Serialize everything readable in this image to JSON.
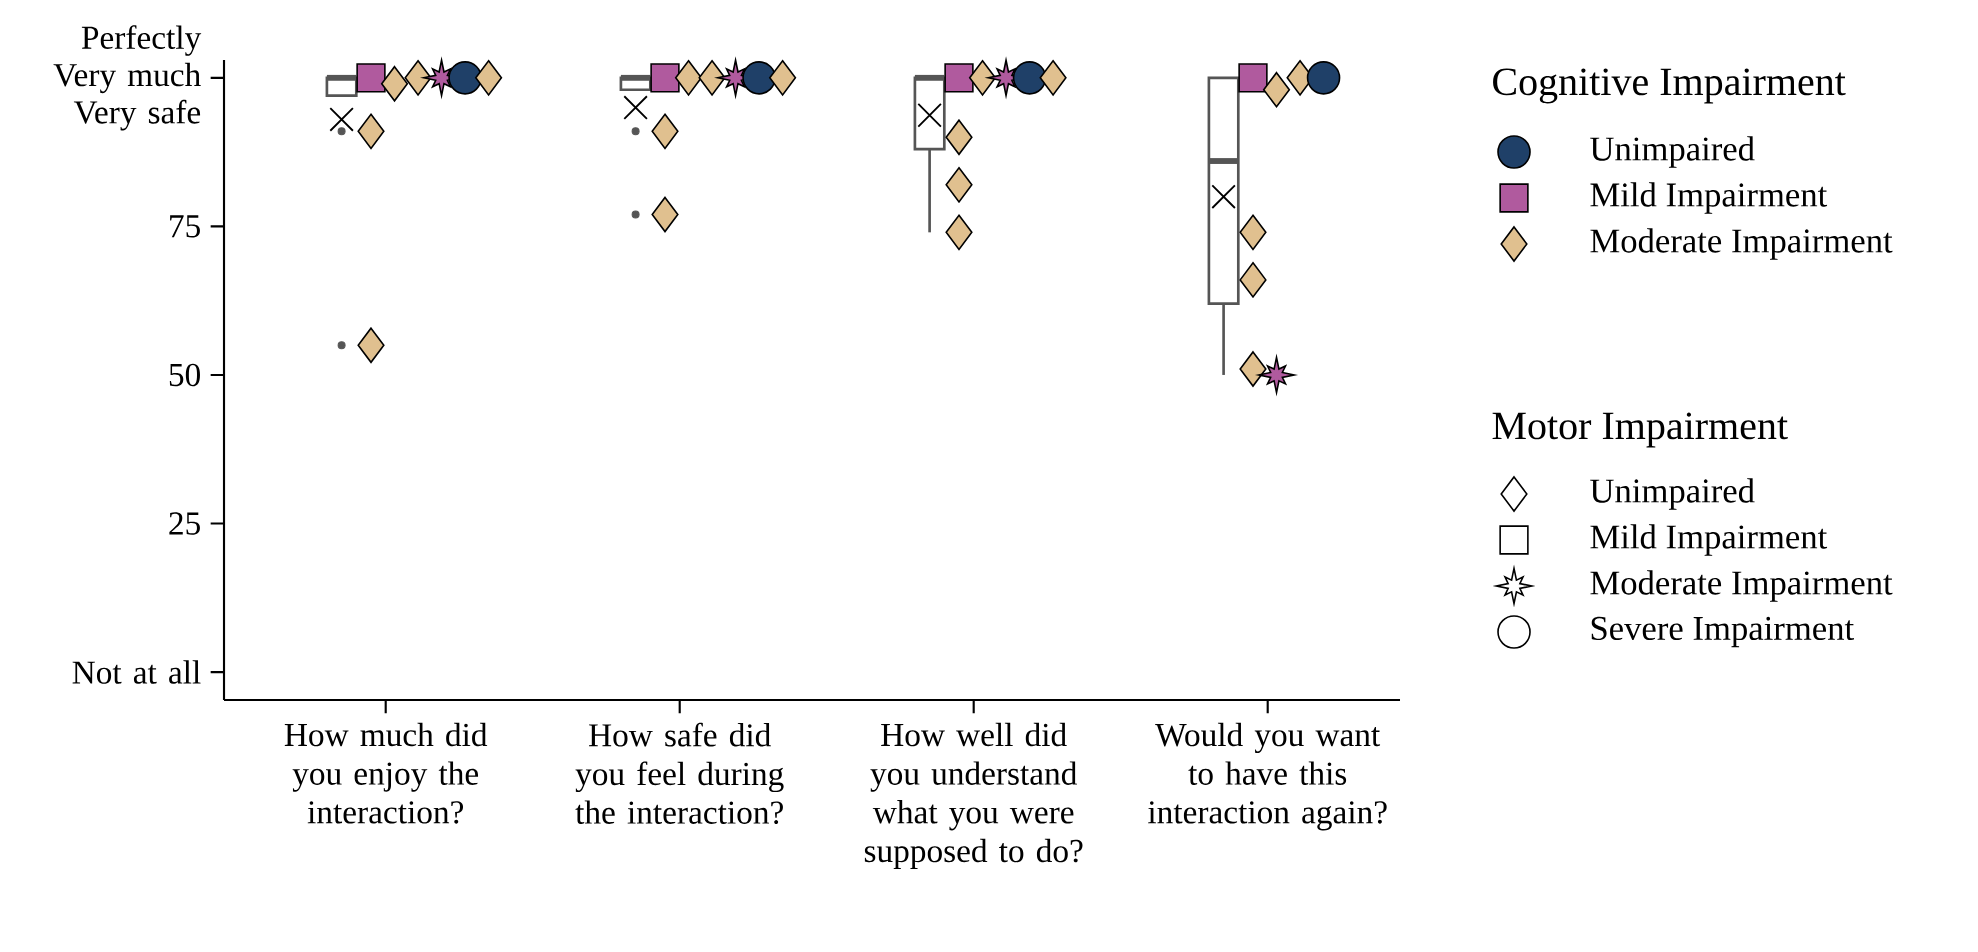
{
  "chart_data": {
    "type": "scatter",
    "categories": [
      "How much did you enjoy the interaction?",
      "How safe did you feel during the interaction?",
      "How well did you understand what you were supposed to do?",
      "Would you want to have this interaction again?"
    ],
    "ylim": [
      -4.7,
      103
    ],
    "yticks": [
      {
        "value": 0,
        "label": "Not at all"
      },
      25,
      50,
      75,
      {
        "value": 100,
        "label": "Perfectly Very much Very safe"
      }
    ],
    "annotations": [
      "Cognitive Impairment",
      "Unimpaired",
      "Mild Impairment",
      "Moderate Impairment",
      "Motor Impairment",
      "Unimpaired",
      "Mild Impairment",
      "Moderate Impairment",
      "Severe Impairment"
    ],
    "series": [
      {
        "type": "box",
        "color": "#555555",
        "boxes": [
          {
            "low": 97,
            "q1": 97,
            "median": 100,
            "q3": 100,
            "high": 100,
            "mean": 93,
            "outliers": [
              91,
              55
            ]
          },
          {
            "low": 98,
            "q1": 98,
            "median": 100,
            "q3": 100,
            "high": 100,
            "mean": 95,
            "outliers": [
              91,
              77
            ]
          },
          {
            "low": 74,
            "q1": 88,
            "median": 100,
            "q3": 100,
            "high": 100,
            "mean": 93.7
          },
          {
            "low": 50,
            "q1": 62,
            "median": 86,
            "q3": 100,
            "high": 100,
            "mean": 80
          }
        ]
      },
      {
        "color": "#b05a9e",
        "marker": "square",
        "values": [
          100,
          100,
          100,
          100
        ]
      },
      {
        "color": "#e0c08f",
        "marker": "diamond",
        "values": [
          91,
          91,
          90,
          74
        ]
      },
      {
        "color": "#e0c08f",
        "marker": "diamond",
        "values": [
          55,
          77,
          82,
          66
        ]
      },
      {
        "color": "#e0c08f",
        "marker": "diamond",
        "values": [
          null,
          null,
          74,
          51
        ]
      },
      {
        "color": "#e0c08f",
        "marker": "diamond",
        "values": [
          99,
          100,
          100,
          98
        ]
      },
      {
        "color": "#b05a9e",
        "marker": "star",
        "values": [
          null,
          null,
          null,
          50
        ]
      },
      {
        "color": "#e0c08f",
        "marker": "diamond",
        "values": [
          100,
          100,
          null,
          100
        ]
      },
      {
        "color": "#b05a9e",
        "marker": "star",
        "values": [
          null,
          null,
          100,
          null
        ]
      },
      {
        "color": "#b05a9e",
        "marker": "star",
        "values": [
          100,
          100,
          null,
          null
        ]
      },
      {
        "color": "#1f4068",
        "marker": "circle",
        "values": [
          null,
          null,
          100,
          100
        ]
      },
      {
        "color": "#1f4068",
        "marker": "circle",
        "values": [
          100,
          100,
          null,
          null
        ]
      },
      {
        "color": "#e0c08f",
        "marker": "diamond",
        "values": [
          null,
          null,
          100,
          null
        ]
      },
      {
        "color": "#e0c08f",
        "marker": "diamond",
        "values": [
          100,
          100,
          null,
          null
        ]
      }
    ]
  }
}
